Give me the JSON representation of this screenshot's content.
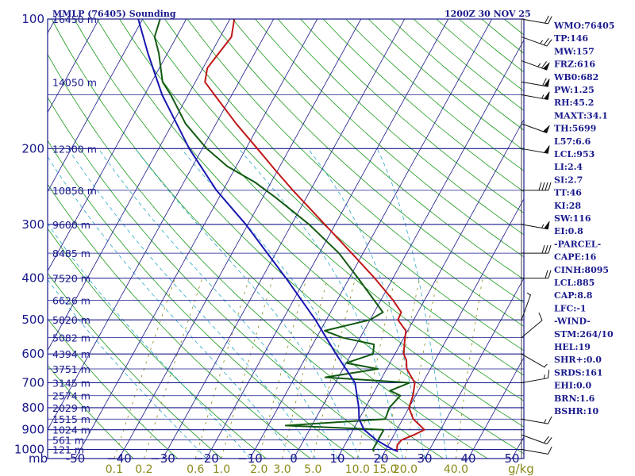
{
  "header": {
    "title": "MMLP (76405) Sounding",
    "time": "1200Z 30 NOV 25"
  },
  "indices": [
    "WMO:76405",
    "TP:146",
    "MW:157",
    "FRZ:616",
    "WB0:682",
    "PW:1.25",
    "RH:45.2",
    "MAXT:34.1",
    "TH:5699",
    "L57:6.6",
    "LCL:953",
    "LI:2.4",
    "SI:2.7",
    "TT:46",
    "KI:28",
    "SW:116",
    "EI:0.8",
    "-PARCEL-",
    "CAPE:16",
    "CINH:8095",
    "LCL:885",
    "CAP:8.8",
    "LFC:-1",
    "-WIND-",
    "STM:264/10",
    "HEL:19",
    "SHR+:0.0",
    "SRDS:161",
    "EHI:0.0",
    "BRN:1.6",
    "BSHR:10"
  ],
  "chart_data": {
    "type": "line",
    "title": "MMLP (76405) Sounding",
    "xlabel": "",
    "ylabel": "mb",
    "units_label": "g/kg",
    "pressure_ticks": [
      100,
      200,
      300,
      400,
      500,
      600,
      700,
      800,
      900,
      1000
    ],
    "temp_ticks": [
      -50,
      -40,
      -30,
      -20,
      -10,
      0,
      10,
      20,
      30,
      40,
      50
    ],
    "temp_tick_labels": [
      "-50",
      "−40",
      "−30",
      "−20",
      "−10",
      "0",
      "10",
      "20",
      "30",
      "40",
      "50"
    ],
    "mixing_ratio_labels": [
      "0.1",
      "0.2",
      "0.6",
      "1.0",
      "2.0",
      "3.0",
      "5.0",
      "10.0",
      "15.0",
      "20.0",
      "40.0"
    ],
    "height_labels": [
      {
        "p": 100,
        "label": "16450 m"
      },
      {
        "p": 140,
        "label": "14050 m"
      },
      {
        "p": 200,
        "label": "12300 m"
      },
      {
        "p": 250,
        "label": "10850 m"
      },
      {
        "p": 300,
        "label": "9600 m"
      },
      {
        "p": 350,
        "label": "8485 m"
      },
      {
        "p": 400,
        "label": "7520 m"
      },
      {
        "p": 450,
        "label": "6626 m"
      },
      {
        "p": 500,
        "label": "5820 m"
      },
      {
        "p": 550,
        "label": "5082 m"
      },
      {
        "p": 600,
        "label": "4394 m"
      },
      {
        "p": 650,
        "label": "3751 m"
      },
      {
        "p": 700,
        "label": "3145 m"
      },
      {
        "p": 750,
        "label": "2574 m"
      },
      {
        "p": 800,
        "label": "2029 m"
      },
      {
        "p": 850,
        "label": "1515 m"
      },
      {
        "p": 900,
        "label": "1024 m"
      },
      {
        "p": 950,
        "label": "561 m"
      },
      {
        "p": 1000,
        "label": "121 m"
      }
    ],
    "series": [
      {
        "name": "temperature",
        "color": "#c01818",
        "points": [
          [
            1011,
            22.8
          ],
          [
            1000,
            22.5
          ],
          [
            975,
            22.0
          ],
          [
            950,
            22.4
          ],
          [
            925,
            24.6
          ],
          [
            900,
            26.3
          ],
          [
            880,
            24.8
          ],
          [
            850,
            22.4
          ],
          [
            800,
            20.0
          ],
          [
            750,
            19.4
          ],
          [
            700,
            18.2
          ],
          [
            650,
            14.6
          ],
          [
            620,
            13.4
          ],
          [
            600,
            12.0
          ],
          [
            560,
            10.6
          ],
          [
            530,
            9.6
          ],
          [
            500,
            6.4
          ],
          [
            480,
            6.2
          ],
          [
            450,
            2.8
          ],
          [
            400,
            -4.2
          ],
          [
            350,
            -12.6
          ],
          [
            300,
            -22.4
          ],
          [
            250,
            -34.0
          ],
          [
            225,
            -40.4
          ],
          [
            200,
            -47.4
          ],
          [
            175,
            -55.4
          ],
          [
            150,
            -64.0
          ],
          [
            140,
            -67.8
          ],
          [
            130,
            -69.0
          ],
          [
            122,
            -68.4
          ],
          [
            110,
            -67.4
          ],
          [
            100,
            -69.0
          ]
        ]
      },
      {
        "name": "dewpoint",
        "color": "#125a12",
        "points": [
          [
            1011,
            17.5
          ],
          [
            1000,
            17.0
          ],
          [
            950,
            17.0
          ],
          [
            900,
            17.0
          ],
          [
            880,
            -6.0
          ],
          [
            850,
            16.0
          ],
          [
            800,
            15.5
          ],
          [
            750,
            16.5
          ],
          [
            730,
            13.5
          ],
          [
            700,
            17.0
          ],
          [
            680,
            -3.0
          ],
          [
            650,
            8.0
          ],
          [
            630,
            0.0
          ],
          [
            600,
            5.0
          ],
          [
            570,
            4.0
          ],
          [
            550,
            -4.0
          ],
          [
            530,
            -9.0
          ],
          [
            500,
            0.0
          ],
          [
            480,
            2.0
          ],
          [
            400,
            -8.0
          ],
          [
            350,
            -15.5
          ],
          [
            300,
            -26.0
          ],
          [
            260,
            -37.0
          ],
          [
            240,
            -43.5
          ],
          [
            220,
            -52.0
          ],
          [
            200,
            -59.0
          ],
          [
            175,
            -67.0
          ],
          [
            150,
            -74.0
          ],
          [
            140,
            -77.5
          ],
          [
            120,
            -82.0
          ],
          [
            110,
            -85.0
          ],
          [
            100,
            -86.0
          ]
        ]
      },
      {
        "name": "parcel",
        "color": "#1818b0",
        "points": [
          [
            1011,
            23.0
          ],
          [
            1000,
            21.5
          ],
          [
            975,
            19.0
          ],
          [
            950,
            16.5
          ],
          [
            900,
            12.5
          ],
          [
            850,
            10.0
          ],
          [
            800,
            8.5
          ],
          [
            700,
            4.5
          ],
          [
            600,
            -3.5
          ],
          [
            500,
            -12.5
          ],
          [
            400,
            -24.5
          ],
          [
            300,
            -40.5
          ],
          [
            250,
            -51.5
          ],
          [
            200,
            -63.0
          ],
          [
            150,
            -76.0
          ],
          [
            120,
            -84.5
          ],
          [
            100,
            -91.0
          ]
        ]
      }
    ],
    "wind_barbs": [
      {
        "p": 100,
        "dir": 100,
        "spd": 20
      },
      {
        "p": 110,
        "dir": 110,
        "spd": 25
      },
      {
        "p": 125,
        "dir": 110,
        "spd": 65
      },
      {
        "p": 140,
        "dir": 100,
        "spd": 60
      },
      {
        "p": 150,
        "dir": 100,
        "spd": 55
      },
      {
        "p": 175,
        "dir": 110,
        "spd": 50
      },
      {
        "p": 200,
        "dir": 100,
        "spd": 50
      },
      {
        "p": 250,
        "dir": 90,
        "spd": 40
      },
      {
        "p": 300,
        "dir": 100,
        "spd": 55
      },
      {
        "p": 350,
        "dir": 90,
        "spd": 30
      },
      {
        "p": 400,
        "dir": 90,
        "spd": 20
      },
      {
        "p": 500,
        "dir": 20,
        "spd": 5
      },
      {
        "p": 550,
        "dir": 50,
        "spd": 10
      },
      {
        "p": 600,
        "dir": 120,
        "spd": 5
      },
      {
        "p": 700,
        "dir": 80,
        "spd": 15
      },
      {
        "p": 850,
        "dir": 100,
        "spd": 15
      },
      {
        "p": 925,
        "dir": 110,
        "spd": 20
      },
      {
        "p": 1000,
        "dir": 100,
        "spd": 10
      }
    ],
    "colors": {
      "frame": "#1a1a8c",
      "isobar": "#1a1a8c",
      "isotherm": "#1a1a8c",
      "dry_adiabat": "#1a9a1a",
      "moist_adiabat": "#2aa8c8",
      "mixing_ratio": "#8b8b1a",
      "barb": "#111111"
    }
  }
}
